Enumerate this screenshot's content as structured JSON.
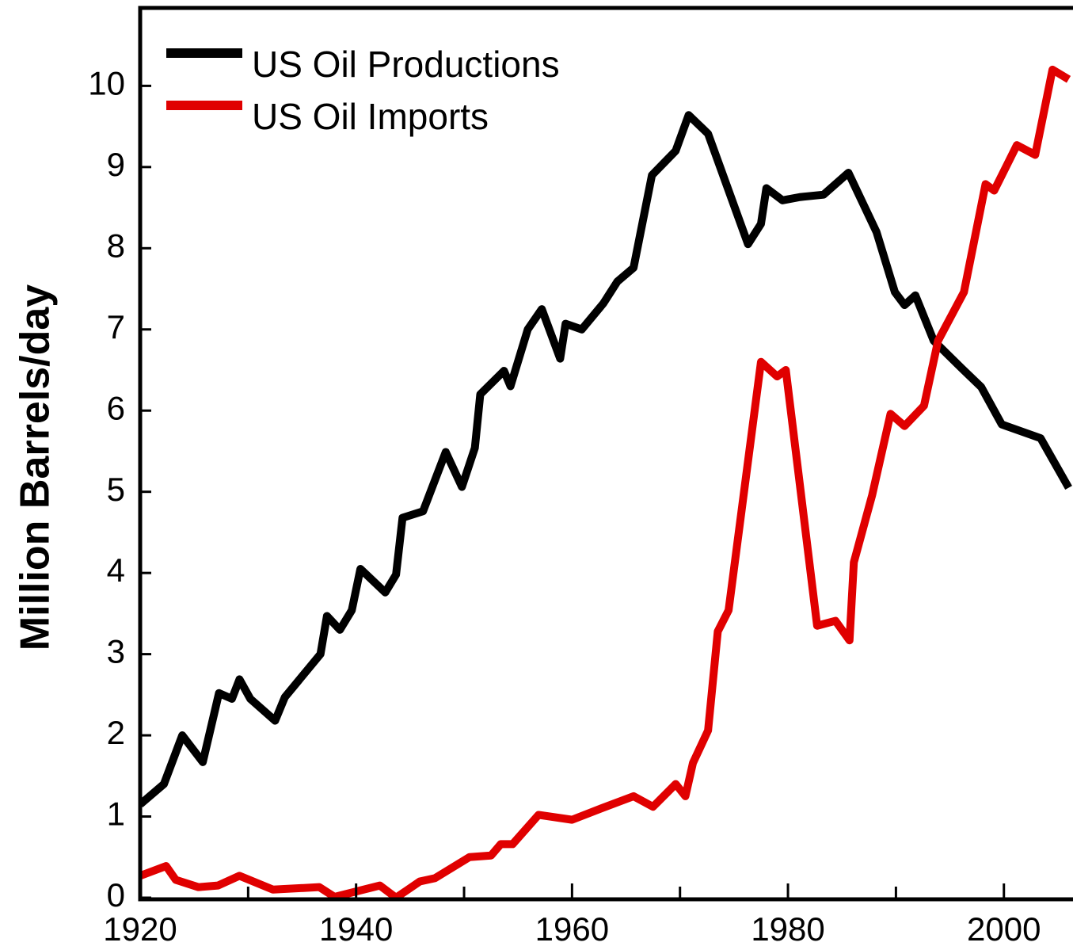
{
  "chart_data": {
    "type": "line",
    "ylabel": "Million Barrels/day",
    "xlim": [
      1920,
      2006.4
    ],
    "ylim": [
      0,
      10.96
    ],
    "xticks": [
      1920,
      1940,
      1960,
      1980,
      2000
    ],
    "xminor_ticks": [
      1930,
      1950,
      1970,
      1990
    ],
    "yticks": [
      0,
      1,
      2,
      3,
      4,
      5,
      6,
      7,
      8,
      9,
      10
    ],
    "legend": "upper left",
    "series": [
      {
        "name": "US Oil Productions",
        "color": "#000000",
        "x": [
          1920,
          1922.2,
          1923.9,
          1925.8,
          1927.3,
          1928.5,
          1929.2,
          1930.2,
          1932.5,
          1933.4,
          1936.7,
          1937.3,
          1938.5,
          1939.6,
          1940.4,
          1942.7,
          1943.7,
          1944.3,
          1946.2,
          1948.3,
          1949.8,
          1951.0,
          1951.5,
          1953.7,
          1954.3,
          1955.9,
          1957.2,
          1958.9,
          1959.4,
          1960.9,
          1962.9,
          1964.2,
          1965.7,
          1967.4,
          1969.6,
          1970.8,
          1972.6,
          1976.3,
          1977.5,
          1978.0,
          1979.5,
          1981.1,
          1983.3,
          1985.6,
          1988.2,
          1989.9,
          1990.8,
          1991.8,
          1993.5,
          1996.1,
          1997.9,
          1999.8,
          2003.4,
          2006.0
        ],
        "values": [
          1.15,
          1.4,
          2.0,
          1.67,
          2.52,
          2.45,
          2.69,
          2.45,
          2.18,
          2.47,
          3.0,
          3.47,
          3.3,
          3.54,
          4.05,
          3.76,
          3.98,
          4.68,
          4.76,
          5.49,
          5.06,
          5.54,
          6.2,
          6.49,
          6.3,
          7.0,
          7.25,
          6.64,
          7.07,
          7.0,
          7.32,
          7.59,
          7.76,
          8.9,
          9.2,
          9.64,
          9.41,
          8.05,
          8.3,
          8.74,
          8.59,
          8.63,
          8.66,
          8.93,
          8.2,
          7.46,
          7.3,
          7.42,
          6.86,
          6.52,
          6.29,
          5.83,
          5.66,
          5.05
        ]
      },
      {
        "name": "US Oil Imports",
        "color": "#e00000",
        "x": [
          1920,
          1922.4,
          1923.3,
          1925.4,
          1927.2,
          1929.2,
          1932.3,
          1936.6,
          1938.0,
          1942.2,
          1943.7,
          1945.9,
          1947.3,
          1950.5,
          1952.5,
          1953.4,
          1954.5,
          1956.9,
          1960.0,
          1962.7,
          1965.7,
          1967.5,
          1969.6,
          1970.5,
          1971.2,
          1972.6,
          1973.5,
          1974.5,
          1977.5,
          1979.0,
          1979.8,
          1982.7,
          1984.4,
          1985.7,
          1986.1,
          1987.8,
          1989.5,
          1990.8,
          1992.6,
          1993.9,
          1996.3,
          1998.3,
          1999.1,
          2001.2,
          2002.9,
          2004.5,
          2006.0
        ],
        "values": [
          0.27,
          0.39,
          0.22,
          0.13,
          0.15,
          0.27,
          0.1,
          0.13,
          0.01,
          0.15,
          0,
          0.2,
          0.24,
          0.5,
          0.52,
          0.66,
          0.66,
          1.02,
          0.96,
          1.1,
          1.25,
          1.12,
          1.4,
          1.25,
          1.66,
          2.06,
          3.28,
          3.54,
          6.6,
          6.42,
          6.5,
          3.35,
          3.41,
          3.17,
          4.13,
          4.96,
          5.96,
          5.81,
          6.06,
          6.86,
          7.46,
          8.79,
          8.71,
          9.27,
          9.15,
          10.2,
          10.08
        ]
      }
    ]
  }
}
